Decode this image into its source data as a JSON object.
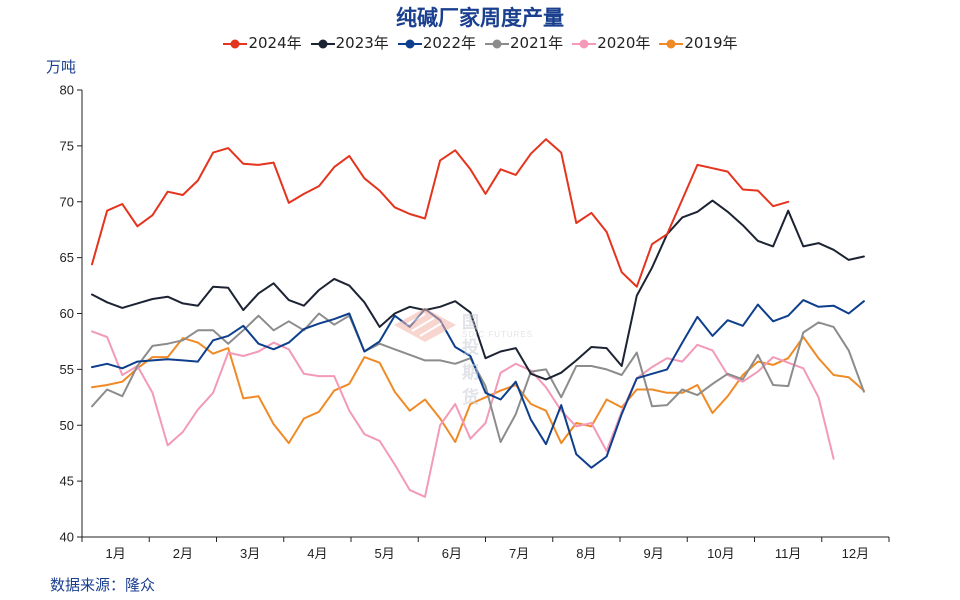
{
  "chart_data": {
    "type": "line",
    "title": "纯碱厂家周度产量",
    "ylabel": "万吨",
    "source": "数据来源：隆众",
    "ylim": [
      40,
      80
    ],
    "yticks": [
      40,
      45,
      50,
      55,
      60,
      65,
      70,
      75,
      80
    ],
    "xlim": [
      1,
      53
    ],
    "x_tick_labels": [
      "1月",
      "2月",
      "3月",
      "4月",
      "5月",
      "6月",
      "7月",
      "8月",
      "9月",
      "10月",
      "11月",
      "12月"
    ],
    "grid": false,
    "legend_placement": "top",
    "series": [
      {
        "name": "2024年",
        "color": "#e5341e",
        "values": [
          64.4,
          69.2,
          69.8,
          67.8,
          68.8,
          70.9,
          70.6,
          71.9,
          74.4,
          74.8,
          73.4,
          73.3,
          73.5,
          69.9,
          70.7,
          71.4,
          73.1,
          74.1,
          72.1,
          71.0,
          69.5,
          68.9,
          68.5,
          73.7,
          74.6,
          72.9,
          70.7,
          72.9,
          72.4,
          74.3,
          75.6,
          74.4,
          68.1,
          69.0,
          67.3,
          63.7,
          62.4,
          66.2,
          67.1,
          70.2,
          73.3,
          73.0,
          72.7,
          71.1,
          71.0,
          69.6,
          70.0
        ]
      },
      {
        "name": "2023年",
        "color": "#1c2333",
        "values": [
          61.7,
          61.0,
          60.5,
          60.9,
          61.3,
          61.5,
          60.9,
          60.7,
          62.4,
          62.3,
          60.3,
          61.8,
          62.7,
          61.2,
          60.7,
          62.1,
          63.1,
          62.5,
          61.0,
          58.8,
          60.0,
          60.6,
          60.3,
          60.6,
          61.1,
          60.1,
          56.0,
          56.6,
          56.9,
          54.6,
          54.1,
          54.7,
          55.8,
          57.0,
          56.9,
          55.3,
          61.6,
          64.1,
          67.1,
          68.6,
          69.1,
          70.1,
          69.1,
          67.9,
          66.5,
          66.0,
          69.2,
          66.0,
          66.3,
          65.7,
          64.8,
          65.1
        ]
      },
      {
        "name": "2022年",
        "color": "#0e3f8c",
        "values": [
          55.2,
          55.5,
          55.1,
          55.7,
          55.8,
          55.9,
          55.8,
          55.7,
          57.6,
          58.0,
          58.9,
          57.3,
          56.8,
          57.4,
          58.6,
          59.1,
          59.5,
          60.0,
          56.6,
          57.5,
          59.8,
          58.8,
          60.4,
          59.4,
          57.0,
          56.2,
          52.9,
          52.3,
          53.9,
          50.5,
          48.3,
          51.8,
          47.4,
          46.2,
          47.2,
          51.0,
          54.2,
          54.6,
          55.0,
          57.4,
          59.7,
          58.0,
          59.4,
          58.9,
          60.8,
          59.3,
          59.8,
          61.2,
          60.6,
          60.7,
          60.0,
          61.1
        ]
      },
      {
        "name": "2021年",
        "color": "#8c8c8c",
        "values": [
          51.7,
          53.2,
          52.6,
          55.3,
          57.1,
          57.3,
          57.6,
          58.5,
          58.5,
          57.3,
          58.5,
          59.8,
          58.5,
          59.3,
          58.5,
          60.0,
          59.0,
          59.8,
          56.6,
          57.3,
          56.8,
          56.3,
          55.8,
          55.8,
          55.5,
          56.0,
          53.5,
          48.5,
          51.0,
          54.8,
          55.0,
          52.5,
          55.3,
          55.3,
          55.0,
          54.5,
          56.5,
          51.7,
          51.8,
          53.2,
          52.7,
          53.7,
          54.6,
          54.1,
          56.3,
          53.6,
          53.5,
          58.3,
          59.2,
          58.8,
          56.7,
          53.0
        ]
      },
      {
        "name": "2020年",
        "color": "#f29ab8",
        "values": [
          58.4,
          57.9,
          54.5,
          55.3,
          52.9,
          48.2,
          49.4,
          51.4,
          52.9,
          56.5,
          56.2,
          56.6,
          57.4,
          56.8,
          54.6,
          54.4,
          54.4,
          51.3,
          49.2,
          48.6,
          46.5,
          44.2,
          43.6,
          50.0,
          51.9,
          48.8,
          50.2,
          54.7,
          55.5,
          54.9,
          53.4,
          51.3,
          49.9,
          50.2,
          47.7,
          51.2,
          54.2,
          55.2,
          56.0,
          55.7,
          57.2,
          56.7,
          54.5,
          53.9,
          54.8,
          56.1,
          55.6,
          55.1,
          52.5,
          47.0
        ]
      },
      {
        "name": "2019年",
        "color": "#f08a26",
        "values": [
          53.4,
          53.6,
          53.9,
          55.1,
          56.1,
          56.1,
          57.8,
          57.4,
          56.4,
          56.9,
          52.4,
          52.6,
          50.1,
          48.4,
          50.6,
          51.2,
          53.1,
          53.7,
          56.1,
          55.6,
          53.0,
          51.3,
          52.3,
          50.6,
          48.5,
          51.9,
          52.5,
          53.1,
          53.6,
          51.9,
          51.3,
          48.4,
          50.2,
          49.9,
          52.3,
          51.6,
          53.2,
          53.2,
          52.9,
          52.9,
          53.6,
          51.1,
          52.6,
          54.5,
          55.7,
          55.4,
          56.0,
          57.9,
          56.0,
          54.5,
          54.3,
          53.1
        ]
      }
    ]
  },
  "watermark": {
    "cn": "国投期货",
    "en": "SDIC FUTURES"
  }
}
